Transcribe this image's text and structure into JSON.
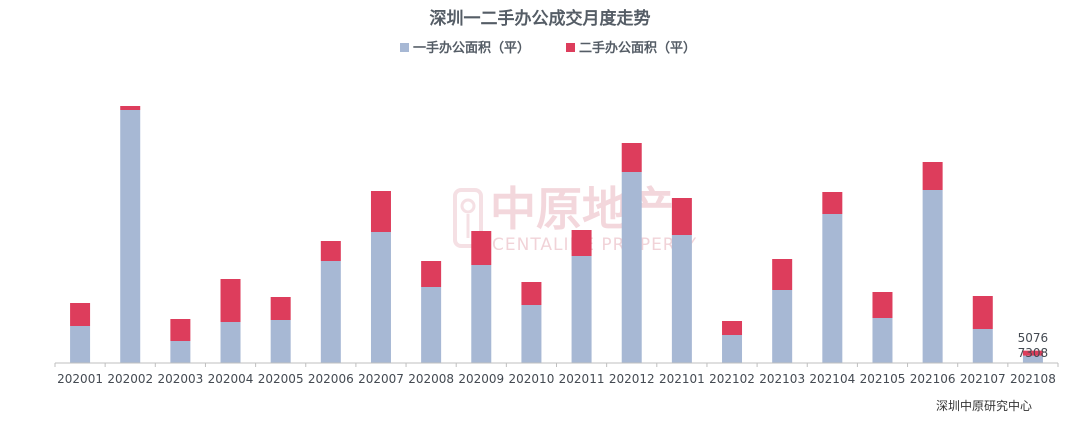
{
  "chart_data": {
    "type": "bar",
    "stacked": true,
    "title": "深圳一二手办公成交月度走势",
    "categories": [
      "202001",
      "202002",
      "202003",
      "202004",
      "202005",
      "202006",
      "202007",
      "202008",
      "202009",
      "202010",
      "202011",
      "202012",
      "202101",
      "202102",
      "202103",
      "202104",
      "202105",
      "202106",
      "202107",
      "202108"
    ],
    "series": [
      {
        "name": "一手办公面积（平）",
        "color": "#a7b8d4",
        "values": [
          37000,
          253000,
          22000,
          41000,
          43000,
          102000,
          131000,
          76000,
          98000,
          58000,
          107000,
          191000,
          128000,
          28000,
          73000,
          149000,
          45000,
          173000,
          34000,
          7308
        ]
      },
      {
        "name": "二手办公面积（平）",
        "color": "#dd3d5c",
        "values": [
          23000,
          4000,
          22000,
          43000,
          23000,
          20000,
          41000,
          26000,
          34000,
          23000,
          26000,
          29000,
          37000,
          14000,
          31000,
          22000,
          26000,
          28000,
          33000,
          5076
        ]
      }
    ],
    "data_labels": {
      "202108": [
        "5076",
        "7308"
      ]
    },
    "ylim": [
      0,
      260000
    ],
    "grid": false,
    "legend_position": "top-center"
  },
  "watermark": {
    "cn": "中原地产",
    "en": "CENTALINE PROPERTY"
  },
  "source": "深圳中原研究中心"
}
